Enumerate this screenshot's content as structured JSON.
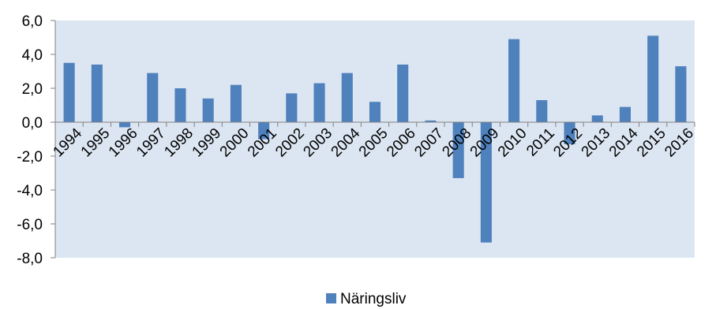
{
  "chart_data": {
    "type": "bar",
    "title": "",
    "xlabel": "",
    "ylabel": "",
    "categories": [
      "1994",
      "1995",
      "1996",
      "1997",
      "1998",
      "1999",
      "2000",
      "2001",
      "2002",
      "2003",
      "2004",
      "2005",
      "2006",
      "2007",
      "2008",
      "2009",
      "2010",
      "2011",
      "2012",
      "2013",
      "2014",
      "2015",
      "2016"
    ],
    "series": [
      {
        "name": "Näringsliv",
        "values": [
          3.5,
          3.4,
          -0.3,
          2.9,
          2.0,
          1.4,
          2.2,
          -1.0,
          1.7,
          2.3,
          2.9,
          1.2,
          3.4,
          0.1,
          -3.3,
          -7.1,
          4.9,
          1.3,
          -1.3,
          0.4,
          0.9,
          5.1,
          3.3
        ]
      }
    ],
    "ylim": [
      -8.0,
      6.0
    ],
    "yticks": [
      "6,0",
      "4,0",
      "2,0",
      "0,0",
      "-2,0",
      "-4,0",
      "-6,0",
      "-8,0"
    ],
    "ytick_values": [
      6,
      4,
      2,
      0,
      -2,
      -4,
      -6,
      -8
    ],
    "grid": false,
    "legend_position": "bottom",
    "colors": {
      "bar": "#4F81BD",
      "plot_background": "#DCE6F2",
      "axis": "#808080"
    }
  }
}
